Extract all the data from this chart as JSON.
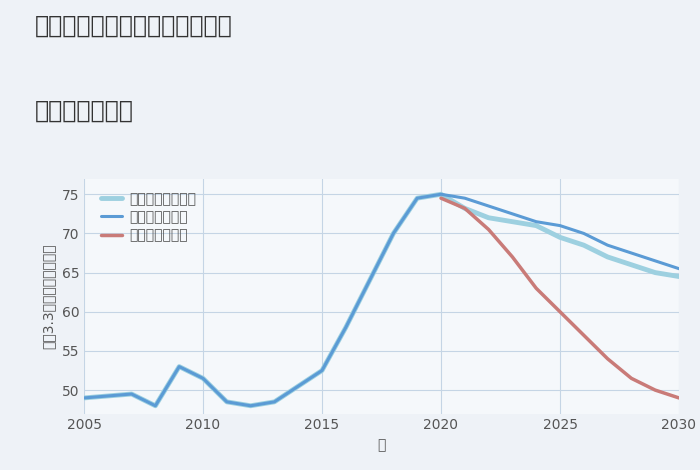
{
  "title_line1": "愛知県名古屋市中村区横前町の",
  "title_line2": "土地の価格推移",
  "xlabel": "年",
  "ylabel": "坪（3.3㎡）単価（万円）",
  "background_color": "#eef2f7",
  "plot_bg_color": "#f5f8fb",
  "grid_color": "#c5d5e5",
  "xlim": [
    2005,
    2030
  ],
  "ylim": [
    47,
    77
  ],
  "yticks": [
    50,
    55,
    60,
    65,
    70,
    75
  ],
  "xticks": [
    2005,
    2010,
    2015,
    2020,
    2025,
    2030
  ],
  "good_scenario": {
    "x": [
      2005,
      2007,
      2008,
      2009,
      2010,
      2011,
      2012,
      2013,
      2014,
      2015,
      2016,
      2017,
      2018,
      2019,
      2020,
      2021,
      2022,
      2023,
      2024,
      2025,
      2026,
      2027,
      2028,
      2029,
      2030
    ],
    "y": [
      49.0,
      49.5,
      48.0,
      53.0,
      51.5,
      48.5,
      48.0,
      48.5,
      50.5,
      52.5,
      58.0,
      64.0,
      70.0,
      74.5,
      75.0,
      74.5,
      73.5,
      72.5,
      71.5,
      71.0,
      70.0,
      68.5,
      67.5,
      66.5,
      65.5
    ],
    "color": "#5b9bd5",
    "linewidth": 2.2,
    "label": "グッドシナリオ",
    "linestyle": "-"
  },
  "bad_scenario": {
    "x": [
      2020,
      2021,
      2022,
      2023,
      2024,
      2025,
      2026,
      2027,
      2028,
      2029,
      2030
    ],
    "y": [
      74.5,
      73.2,
      70.5,
      67.0,
      63.0,
      60.0,
      57.0,
      54.0,
      51.5,
      50.0,
      49.0
    ],
    "color": "#c97b78",
    "linewidth": 2.5,
    "label": "バッドシナリオ",
    "linestyle": "-"
  },
  "normal_scenario": {
    "x": [
      2005,
      2007,
      2008,
      2009,
      2010,
      2011,
      2012,
      2013,
      2014,
      2015,
      2016,
      2017,
      2018,
      2019,
      2020,
      2021,
      2022,
      2023,
      2024,
      2025,
      2026,
      2027,
      2028,
      2029,
      2030
    ],
    "y": [
      49.0,
      49.5,
      48.0,
      53.0,
      51.5,
      48.5,
      48.0,
      48.5,
      50.5,
      52.5,
      58.0,
      64.0,
      70.0,
      74.5,
      75.0,
      73.2,
      72.0,
      71.5,
      71.0,
      69.5,
      68.5,
      67.0,
      66.0,
      65.0,
      64.5
    ],
    "color": "#9dd0e0",
    "linewidth": 3.5,
    "label": "ノーマルシナリオ",
    "linestyle": "-"
  },
  "title_fontsize": 17,
  "label_fontsize": 10,
  "tick_fontsize": 10,
  "legend_fontsize": 10
}
